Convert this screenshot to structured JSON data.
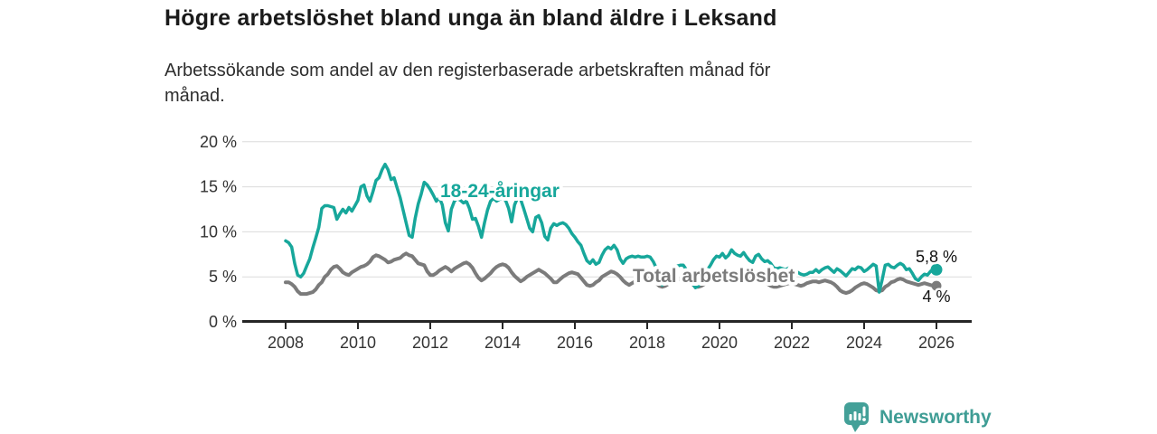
{
  "header": {
    "title": "Högre arbetslöshet bland unga än bland äldre i Leksand",
    "subtitle": "Arbetssökande som andel av den registerbaserade arbetskraften månad för månad."
  },
  "footer": {
    "brand": "Newsworthy"
  },
  "colors": {
    "young_line": "#17a79b",
    "total_line": "#7b7b7b",
    "axis": "#262626",
    "grid": "#dcdcdc",
    "tick_text": "#333333",
    "value_text": "#111111",
    "logo_teal": "#43a098"
  },
  "chart_data": {
    "type": "line",
    "title": "Högre arbetslöshet bland unga än bland äldre i Leksand",
    "subtitle": "Arbetssökande som andel av den registerbaserade arbetskraften månad för månad.",
    "unit": "%",
    "ylim": [
      0,
      20
    ],
    "grid": "horizontal",
    "legend": "inline-labels",
    "y_ticks": [
      0,
      5,
      10,
      15,
      20
    ],
    "y_tick_labels": [
      "0 %",
      "5 %",
      "10 %",
      "15 %",
      "20 %"
    ],
    "x_ticks": [
      2008,
      2010,
      2012,
      2014,
      2016,
      2018,
      2020,
      2022,
      2024,
      2026
    ],
    "x_tick_labels": [
      "2008",
      "2010",
      "2012",
      "2014",
      "2016",
      "2018",
      "2020",
      "2022",
      "2024",
      "2026"
    ],
    "x_start_year": 2008,
    "x_interval_months": 1,
    "series": [
      {
        "name": "Total arbetslöshet",
        "color": "#7b7b7b",
        "end_label": "4 %",
        "end_value": 4.0,
        "values": [
          4.4,
          4.4,
          4.2,
          3.9,
          3.4,
          3.1,
          3.1,
          3.1,
          3.2,
          3.3,
          3.6,
          4.1,
          4.4,
          5.0,
          5.3,
          5.8,
          6.1,
          6.2,
          5.9,
          5.5,
          5.3,
          5.2,
          5.5,
          5.7,
          5.9,
          6.1,
          6.2,
          6.4,
          6.7,
          7.2,
          7.4,
          7.3,
          7.1,
          6.9,
          6.6,
          6.7,
          6.9,
          7.0,
          7.1,
          7.4,
          7.6,
          7.4,
          7.3,
          6.9,
          6.5,
          6.4,
          6.3,
          5.6,
          5.2,
          5.2,
          5.4,
          5.7,
          5.9,
          6.1,
          5.9,
          5.6,
          5.9,
          6.1,
          6.3,
          6.5,
          6.6,
          6.4,
          6.0,
          5.4,
          4.9,
          4.6,
          4.8,
          5.1,
          5.4,
          5.8,
          6.1,
          6.3,
          6.4,
          6.3,
          6.0,
          5.5,
          5.1,
          4.8,
          4.5,
          4.7,
          5.0,
          5.2,
          5.4,
          5.6,
          5.8,
          5.6,
          5.4,
          5.1,
          4.8,
          4.4,
          4.4,
          4.7,
          5.0,
          5.2,
          5.4,
          5.5,
          5.4,
          5.3,
          4.9,
          4.5,
          4.1,
          4.0,
          4.1,
          4.4,
          4.6,
          5.0,
          5.2,
          5.4,
          5.6,
          5.5,
          5.3,
          5.0,
          4.6,
          4.3,
          4.1,
          4.3,
          4.5,
          4.7,
          4.9,
          5.0,
          5.1,
          4.9,
          4.6,
          4.3,
          4.0,
          3.9,
          4.0,
          4.2,
          4.4,
          4.6,
          4.7,
          4.8,
          4.9,
          4.7,
          4.5,
          4.2,
          3.9,
          3.9,
          4.0,
          4.2,
          4.4,
          4.5,
          4.6,
          4.7,
          4.8,
          4.9,
          5.1,
          5.4,
          5.6,
          5.7,
          5.6,
          5.5,
          5.3,
          5.2,
          5.0,
          4.9,
          4.8,
          4.7,
          4.6,
          4.4,
          4.2,
          4.0,
          3.9,
          3.9,
          4.0,
          4.1,
          4.2,
          4.3,
          4.3,
          4.2,
          4.1,
          4.0,
          4.1,
          4.3,
          4.4,
          4.5,
          4.5,
          4.4,
          4.5,
          4.6,
          4.5,
          4.4,
          4.2,
          3.9,
          3.5,
          3.3,
          3.2,
          3.3,
          3.5,
          3.8,
          4.0,
          4.2,
          4.3,
          4.2,
          4.0,
          3.8,
          3.5,
          3.4,
          3.5,
          3.9,
          4.1,
          4.4,
          4.5,
          4.7,
          4.8,
          4.7,
          4.5,
          4.4,
          4.3,
          4.2,
          4.1,
          4.2,
          4.3,
          4.2,
          4.1,
          4.0,
          4.0
        ]
      },
      {
        "name": "18-24-åringar",
        "color": "#17a79b",
        "end_label": "5,8 %",
        "end_value": 5.8,
        "values": [
          9.0,
          8.8,
          8.3,
          6.5,
          5.2,
          5.0,
          5.4,
          6.2,
          7.0,
          8.2,
          9.3,
          10.5,
          12.6,
          12.9,
          12.9,
          12.8,
          12.7,
          11.4,
          12.0,
          12.5,
          12.1,
          12.7,
          12.3,
          12.9,
          13.5,
          15.0,
          15.2,
          14.0,
          13.4,
          14.5,
          15.7,
          16.0,
          16.9,
          17.5,
          16.9,
          15.8,
          16.0,
          14.9,
          13.8,
          12.4,
          11.0,
          9.6,
          9.4,
          11.5,
          13.1,
          14.2,
          15.5,
          15.2,
          14.7,
          14.1,
          13.4,
          13.8,
          13.0,
          11.0,
          10.1,
          12.5,
          13.4,
          13.7,
          13.5,
          13.2,
          13.4,
          12.6,
          11.4,
          11.5,
          10.6,
          9.4,
          11.0,
          12.4,
          13.4,
          13.7,
          13.4,
          13.6,
          13.7,
          13.5,
          12.6,
          11.1,
          13.0,
          13.8,
          13.6,
          12.6,
          11.5,
          10.4,
          10.0,
          11.6,
          11.8,
          11.0,
          9.5,
          9.1,
          10.4,
          10.9,
          10.7,
          10.9,
          11.0,
          10.8,
          10.4,
          9.8,
          9.4,
          8.9,
          8.5,
          7.6,
          6.8,
          6.5,
          6.9,
          6.4,
          6.6,
          7.4,
          8.0,
          8.3,
          8.1,
          8.5,
          8.0,
          7.0,
          6.5,
          7.0,
          7.2,
          7.3,
          7.2,
          7.3,
          7.2,
          7.2,
          7.3,
          7.2,
          6.7,
          6.0,
          5.0,
          4.1,
          4.6,
          5.4,
          5.8,
          6.0,
          6.2,
          6.3,
          6.3,
          5.8,
          5.0,
          4.3,
          3.8,
          4.0,
          4.6,
          5.2,
          5.8,
          6.3,
          6.9,
          7.3,
          7.2,
          7.6,
          7.1,
          7.4,
          8.0,
          7.6,
          7.4,
          7.3,
          7.7,
          7.2,
          6.8,
          6.6,
          7.3,
          7.5,
          7.0,
          6.7,
          6.8,
          6.5,
          6.0,
          5.9,
          6.0,
          5.9,
          5.8,
          6.0,
          5.9,
          5.7,
          5.5,
          5.3,
          5.2,
          5.3,
          5.5,
          5.5,
          5.8,
          5.5,
          5.8,
          6.0,
          6.1,
          5.8,
          5.5,
          5.9,
          5.7,
          5.4,
          5.1,
          5.5,
          5.9,
          5.8,
          6.1,
          6.0,
          5.6,
          5.8,
          6.1,
          6.4,
          6.2,
          3.3,
          4.7,
          6.3,
          6.4,
          6.1,
          6.0,
          6.3,
          6.5,
          6.3,
          5.8,
          5.9,
          5.4,
          4.8,
          4.6,
          5.0,
          5.3,
          5.2,
          5.6,
          5.9,
          5.8
        ]
      }
    ]
  }
}
